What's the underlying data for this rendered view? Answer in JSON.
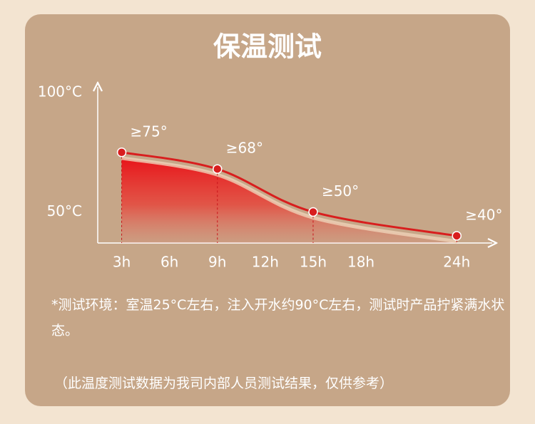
{
  "chart_data": {
    "type": "line",
    "title": "保温测试",
    "x": [
      3,
      9,
      15,
      24
    ],
    "xlim": [
      1.5,
      26
    ],
    "xticks": [
      {
        "value": 3,
        "label": "3h"
      },
      {
        "value": 6,
        "label": "6h"
      },
      {
        "value": 9,
        "label": "9h"
      },
      {
        "value": 12,
        "label": "12h"
      },
      {
        "value": 15,
        "label": "15h"
      },
      {
        "value": 18,
        "label": "18h"
      },
      {
        "value": 24,
        "label": "24h"
      }
    ],
    "ylim": [
      37,
      103
    ],
    "yticks": [
      {
        "value": 100,
        "label": "100°C"
      },
      {
        "value": 50,
        "label": "50°C"
      }
    ],
    "series": [
      {
        "color": "#d81e1e",
        "values": [
          75,
          68,
          50,
          40
        ],
        "value_labels": [
          "≥75°",
          "≥68°",
          "≥50°",
          "≥40°"
        ]
      }
    ]
  },
  "notes": [
    "*测试环境：室温25°C左右，注入开水约90°C左右，测试时产品拧紧满水状态。",
    "（此温度测试数据为我司内部人员测试结果，仅供参考）"
  ]
}
